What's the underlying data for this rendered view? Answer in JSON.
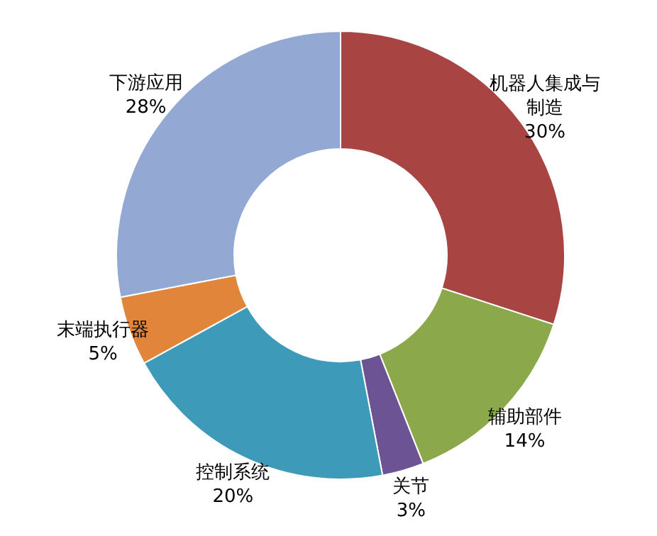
{
  "chart_data": {
    "type": "donut",
    "categories": [
      "机器人集成与制造",
      "辅助部件",
      "关节",
      "控制系统",
      "末端执行器",
      "下游应用"
    ],
    "values": [
      30,
      14,
      3,
      20,
      5,
      28
    ],
    "colors": [
      "#a84442",
      "#8ba94a",
      "#6c5494",
      "#3d9ab8",
      "#e0853a",
      "#93a9d4"
    ],
    "value_labels": [
      "30%",
      "14%",
      "3%",
      "20%",
      "5%",
      "28%"
    ]
  }
}
